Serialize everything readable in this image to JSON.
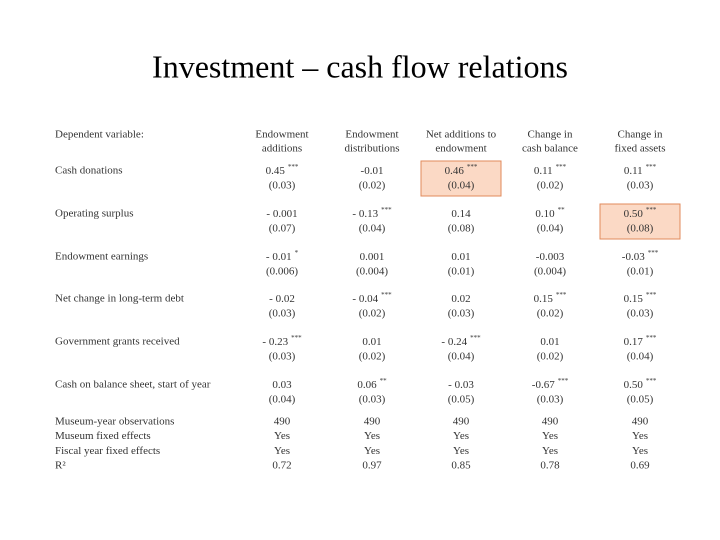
{
  "title": "Investment – cash flow relations",
  "table": {
    "corner": "Dependent variable:",
    "columns": [
      [
        "Endowment",
        "additions"
      ],
      [
        "Endowment",
        "distributions"
      ],
      [
        "Net additions to",
        "endowment"
      ],
      [
        "Change in",
        "cash balance"
      ],
      [
        "Change in",
        "fixed assets"
      ]
    ],
    "coef_rows": [
      {
        "label": "Cash donations",
        "cells": [
          {
            "est": "0.45",
            "stars": "***",
            "se": "(0.03)"
          },
          {
            "est": "-0.01",
            "se": "(0.02)"
          },
          {
            "est": "0.46",
            "stars": "***",
            "se": "(0.04)",
            "highlight": true
          },
          {
            "est": "0.11",
            "stars": "***",
            "se": "(0.02)"
          },
          {
            "est": "0.11",
            "stars": "***",
            "se": "(0.03)"
          }
        ]
      },
      {
        "label": "Operating surplus",
        "cells": [
          {
            "est": "- 0.001",
            "se": "(0.07)"
          },
          {
            "est": "- 0.13",
            "stars": "***",
            "se": "(0.04)"
          },
          {
            "est": "0.14",
            "se": "(0.08)"
          },
          {
            "est": "0.10",
            "stars": "**",
            "se": "(0.04)"
          },
          {
            "est": "0.50",
            "stars": "***",
            "se": "(0.08)",
            "highlight": true
          }
        ]
      },
      {
        "label": "Endowment earnings",
        "cells": [
          {
            "est": "- 0.01",
            "stars": "*",
            "se": "(0.006)"
          },
          {
            "est": "0.001",
            "se": "(0.004)"
          },
          {
            "est": "0.01",
            "se": "(0.01)"
          },
          {
            "est": "-0.003",
            "se": "(0.004)"
          },
          {
            "est": "-0.03",
            "stars": "***",
            "se": "(0.01)"
          }
        ]
      },
      {
        "label": "Net change in long-term debt",
        "cells": [
          {
            "est": "- 0.02",
            "se": "(0.03)"
          },
          {
            "est": "- 0.04",
            "stars": "***",
            "se": "(0.02)"
          },
          {
            "est": "0.02",
            "se": "(0.03)"
          },
          {
            "est": "0.15",
            "stars": "***",
            "se": "(0.02)"
          },
          {
            "est": "0.15",
            "stars": "***",
            "se": "(0.03)"
          }
        ]
      },
      {
        "label": "Government grants received",
        "cells": [
          {
            "est": "- 0.23",
            "stars": "***",
            "se": "(0.03)"
          },
          {
            "est": "0.01",
            "se": "(0.02)"
          },
          {
            "est": "- 0.24",
            "stars": "***",
            "se": "(0.04)"
          },
          {
            "est": "0.01",
            "se": "(0.02)"
          },
          {
            "est": "0.17",
            "stars": "***",
            "se": "(0.04)"
          }
        ]
      },
      {
        "label": "Cash on balance sheet, start of year",
        "cells": [
          {
            "est": "0.03",
            "se": "(0.04)"
          },
          {
            "est": "0.06",
            "stars": "**",
            "se": "(0.03)"
          },
          {
            "est": "- 0.03",
            "se": "(0.05)"
          },
          {
            "est": "-0.67",
            "stars": "***",
            "se": "(0.03)"
          },
          {
            "est": "0.50",
            "stars": "***",
            "se": "(0.05)"
          }
        ]
      }
    ],
    "stat_rows": [
      {
        "label": "Museum-year observations",
        "cells": [
          "490",
          "490",
          "490",
          "490",
          "490"
        ]
      },
      {
        "label": "Museum fixed effects",
        "cells": [
          "Yes",
          "Yes",
          "Yes",
          "Yes",
          "Yes"
        ]
      },
      {
        "label": "Fiscal year fixed effects",
        "cells": [
          "Yes",
          "Yes",
          "Yes",
          "Yes",
          "Yes"
        ]
      },
      {
        "label": "R²",
        "cells": [
          "0.72",
          "0.97",
          "0.85",
          "0.78",
          "0.69"
        ]
      }
    ]
  }
}
